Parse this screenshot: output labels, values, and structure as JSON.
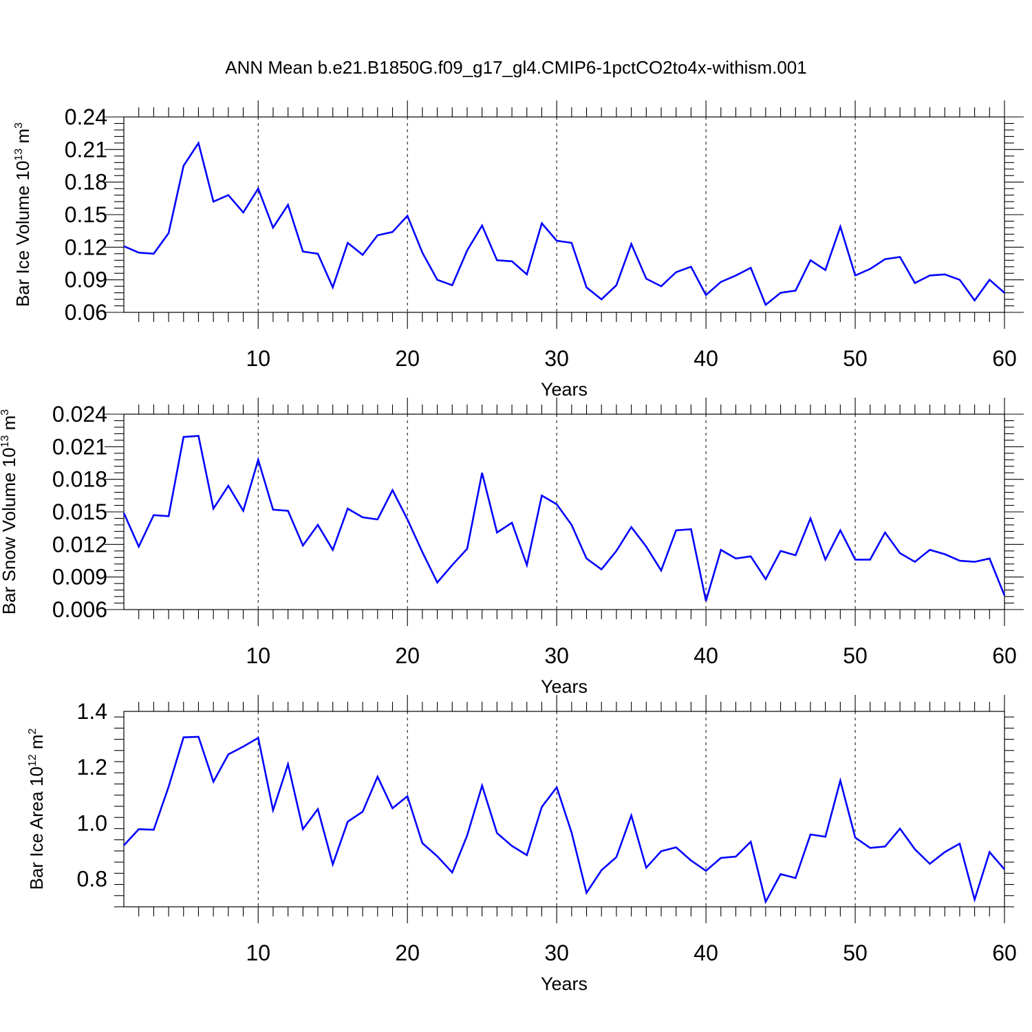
{
  "figure": {
    "title": "ANN Mean b.e21.B1850G.f09_g17_gl4.CMIP6-1pctCO2to4x-withism.001"
  },
  "colors": {
    "line": "#0000ff",
    "axis": "#000000"
  },
  "chart_data": [
    {
      "type": "line",
      "ylabel": {
        "main": "Bar Ice Volume 10",
        "sup": "13",
        "unit": " m",
        "unit_sup": "3"
      },
      "xlabel": "Years",
      "xlim": [
        1,
        60
      ],
      "ylim": [
        0.06,
        0.24
      ],
      "xticks": [
        10,
        20,
        30,
        40,
        50,
        60
      ],
      "xtick_labels": [
        "10",
        "20",
        "30",
        "40",
        "50",
        "60"
      ],
      "yticks": [
        0.06,
        0.09,
        0.12,
        0.15,
        0.18,
        0.21,
        0.24
      ],
      "ytick_labels": [
        "0.06",
        "0.09",
        "0.12",
        "0.15",
        "0.18",
        "0.21",
        "0.24"
      ],
      "grid": "x-dashed",
      "series": [
        {
          "values": [
            0.121,
            0.115,
            0.114,
            0.133,
            0.195,
            0.216,
            0.162,
            0.168,
            0.152,
            0.174,
            0.138,
            0.159,
            0.116,
            0.114,
            0.083,
            0.124,
            0.113,
            0.131,
            0.134,
            0.149,
            0.115,
            0.09,
            0.085,
            0.117,
            0.14,
            0.108,
            0.107,
            0.095,
            0.142,
            0.126,
            0.124,
            0.083,
            0.072,
            0.085,
            0.123,
            0.091,
            0.084,
            0.097,
            0.102,
            0.076,
            0.088,
            0.094,
            0.101,
            0.067,
            0.078,
            0.08,
            0.108,
            0.099,
            0.139,
            0.094,
            0.1,
            0.109,
            0.111,
            0.087,
            0.094,
            0.095,
            0.09,
            0.071,
            0.09,
            0.078
          ]
        }
      ]
    },
    {
      "type": "line",
      "ylabel": {
        "main": "Bar Snow Volume 10",
        "sup": "13",
        "unit": " m",
        "unit_sup": "3"
      },
      "xlabel": "Years",
      "xlim": [
        1,
        60
      ],
      "ylim": [
        0.006,
        0.024
      ],
      "xticks": [
        10,
        20,
        30,
        40,
        50,
        60
      ],
      "xtick_labels": [
        "10",
        "20",
        "30",
        "40",
        "50",
        "60"
      ],
      "yticks": [
        0.006,
        0.009,
        0.012,
        0.015,
        0.018,
        0.021,
        0.024
      ],
      "ytick_labels": [
        "0.006",
        "0.009",
        "0.012",
        "0.015",
        "0.018",
        "0.021",
        "0.024"
      ],
      "grid": "x-dashed",
      "series": [
        {
          "values": [
            0.0149,
            0.0118,
            0.0147,
            0.0146,
            0.0219,
            0.022,
            0.0153,
            0.0174,
            0.0151,
            0.0198,
            0.0152,
            0.0151,
            0.0119,
            0.0138,
            0.0115,
            0.0153,
            0.0145,
            0.0143,
            0.017,
            0.0143,
            0.0113,
            0.0085,
            0.0101,
            0.0116,
            0.0186,
            0.0131,
            0.014,
            0.0101,
            0.0165,
            0.0157,
            0.0138,
            0.0107,
            0.0097,
            0.0114,
            0.0136,
            0.0118,
            0.0096,
            0.0133,
            0.0134,
            0.0068,
            0.0115,
            0.0107,
            0.0109,
            0.0088,
            0.0114,
            0.011,
            0.0144,
            0.0106,
            0.0133,
            0.0106,
            0.0106,
            0.0131,
            0.0112,
            0.0104,
            0.0115,
            0.0111,
            0.0105,
            0.0104,
            0.0107,
            0.0073
          ]
        }
      ]
    },
    {
      "type": "line",
      "ylabel": {
        "main": "Bar Ice Area 10",
        "sup": "12",
        "unit": " m",
        "unit_sup": "2"
      },
      "xlabel": "Years",
      "xlim": [
        1,
        60
      ],
      "ylim": [
        0.7,
        1.4
      ],
      "xticks": [
        10,
        20,
        30,
        40,
        50,
        60
      ],
      "xtick_labels": [
        "10",
        "20",
        "30",
        "40",
        "50",
        "60"
      ],
      "yticks": [
        0.8,
        1.0,
        1.2,
        1.4
      ],
      "ytick_labels": [
        "0.8",
        "1.0",
        "1.2",
        "1.4"
      ],
      "grid": "x-dashed",
      "series": [
        {
          "values": [
            0.92,
            0.978,
            0.976,
            1.13,
            1.307,
            1.309,
            1.148,
            1.246,
            1.274,
            1.305,
            1.046,
            1.211,
            0.978,
            1.05,
            0.852,
            1.005,
            1.041,
            1.166,
            1.053,
            1.096,
            0.928,
            0.881,
            0.823,
            0.955,
            1.134,
            0.964,
            0.918,
            0.885,
            1.058,
            1.128,
            0.966,
            0.75,
            0.831,
            0.878,
            1.027,
            0.84,
            0.899,
            0.913,
            0.866,
            0.829,
            0.875,
            0.88,
            0.933,
            0.718,
            0.817,
            0.803,
            0.959,
            0.951,
            1.152,
            0.948,
            0.911,
            0.916,
            0.98,
            0.906,
            0.854,
            0.896,
            0.926,
            0.726,
            0.896,
            0.834
          ]
        }
      ]
    }
  ]
}
